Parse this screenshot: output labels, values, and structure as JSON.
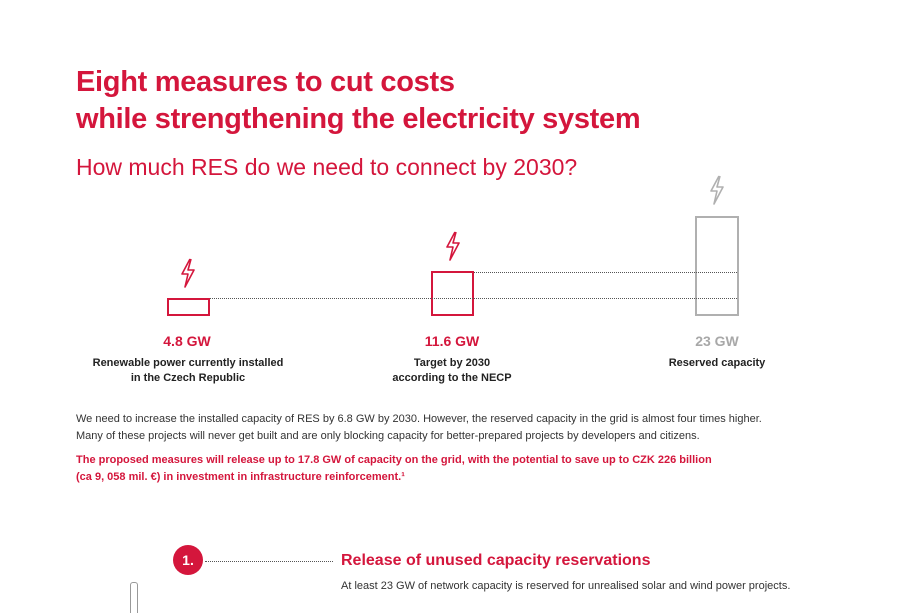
{
  "header": {
    "title_line1": "Eight measures to cut costs",
    "title_line2": "while strengthening the electricity system",
    "subtitle": "How much RES do we need to connect by 2030?"
  },
  "infographic": {
    "items": [
      {
        "value": "4.8 GW",
        "label_line1": "Renewable power currently installed",
        "label_line2": "in the Czech Republic",
        "icon": "lightning-bolt-icon",
        "color": "#d4163c"
      },
      {
        "value": "11.6 GW",
        "label_line1": "Target by 2030",
        "label_line2": "according to the NECP",
        "icon": "lightning-bolt-icon",
        "color": "#d4163c"
      },
      {
        "value": "23 GW",
        "label_line1": "Reserved capacity",
        "label_line2": "",
        "icon": "lightning-bolt-icon",
        "color": "#a8a8a8"
      }
    ]
  },
  "body": {
    "paragraph_line1": "We need to increase the installed capacity of RES by 6.8 GW by 2030. However, the reserved capacity in the grid is almost four times higher.",
    "paragraph_line2": "Many of these projects will never get built and are only blocking capacity for better-prepared projects by developers and citizens.",
    "highlight_line1": "The proposed measures will release up to 17.8 GW of capacity on the grid, with the potential to save up to CZK 226 billion",
    "highlight_line2": "(ca 9, 058 mil. €) in investment in infrastructure reinforcement.¹"
  },
  "measure": {
    "number": "1.",
    "heading": "Release of unused capacity reservations",
    "text": "At least 23 GW of network capacity is reserved for unrealised solar and wind power projects."
  },
  "colors": {
    "accent": "#d4163c",
    "muted": "#a8a8a8",
    "text": "#222222"
  }
}
